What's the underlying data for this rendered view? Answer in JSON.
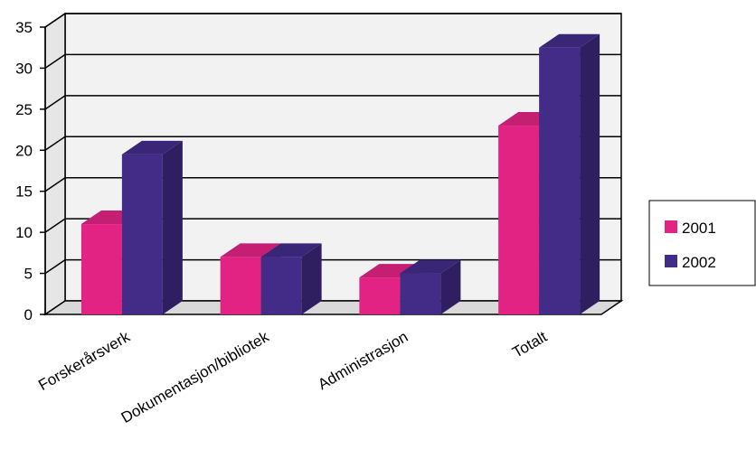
{
  "chart_data": {
    "type": "bar",
    "title": "",
    "xlabel": "",
    "ylabel": "",
    "categories": [
      "Forskerårsverk",
      "Dokumentasjon/bibliotek",
      "Administrasjon",
      "Totalt"
    ],
    "series": [
      {
        "name": "2001",
        "values": [
          11,
          7,
          4.5,
          23
        ],
        "color": "#e32383"
      },
      {
        "name": "2002",
        "values": [
          19.5,
          7,
          5,
          32.5
        ],
        "color": "#432c87"
      }
    ],
    "ylim": [
      0,
      35
    ],
    "yticks": [
      "0",
      "5",
      "10",
      "15",
      "20",
      "25",
      "30",
      "35"
    ],
    "grid": true,
    "legend_position": "right",
    "style": "3d-clustered-column",
    "colors": {
      "series_2001": "#e32383",
      "series_2001_top": "#c41f72",
      "series_2001_side": "#a81a63",
      "series_2002": "#432c87",
      "series_2002_top": "#3a2676",
      "series_2002_side": "#2f1f61",
      "wall": "#f2f2f2",
      "floor": "#d9d9d9"
    }
  }
}
